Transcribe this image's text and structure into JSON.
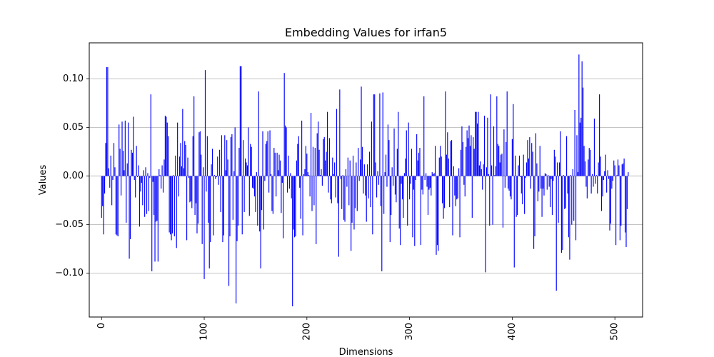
{
  "chart_data": {
    "type": "bar",
    "title": "Embedding Values for irfan5",
    "xlabel": "Dimensions",
    "ylabel": "Values",
    "xlim": [
      -12,
      527
    ],
    "ylim": [
      -0.145,
      0.137
    ],
    "grid": "y-major",
    "bar_color": "#0000ff",
    "x_ticks": [
      0,
      100,
      200,
      300,
      400,
      500
    ],
    "x_tick_labels": [
      "0",
      "100",
      "200",
      "300",
      "400",
      "500"
    ],
    "y_ticks": [
      -0.1,
      -0.05,
      0.0,
      0.05,
      0.1
    ],
    "y_tick_labels": [
      "−0.10",
      "−0.05",
      "0.00",
      "0.05",
      "0.10"
    ],
    "values": [
      -0.043,
      -0.031,
      -0.06,
      -0.018,
      0.034,
      0.112,
      0.112,
      0.008,
      -0.012,
      0.021,
      -0.03,
      -0.004,
      0.034,
      0.009,
      -0.06,
      -0.061,
      -0.062,
      0.053,
      0.028,
      -0.02,
      0.056,
      0.026,
      0.006,
      0.057,
      -0.048,
      0.013,
      0.055,
      -0.085,
      -0.065,
      0.027,
      0.024,
      0.061,
      -0.004,
      -0.022,
      0.031,
      -0.001,
      0.011,
      -0.052,
      -0.016,
      -0.007,
      -0.03,
      0.006,
      -0.042,
      0.009,
      -0.039,
      0.003,
      -0.036,
      -0.002,
      0.084,
      -0.098,
      -0.006,
      -0.04,
      -0.088,
      -0.047,
      -0.046,
      -0.088,
      0.007,
      0.001,
      -0.013,
      0.011,
      -0.017,
      0.017,
      0.062,
      0.061,
      0.055,
      0.041,
      -0.058,
      -0.06,
      -0.066,
      -0.059,
      0.001,
      -0.062,
      0.021,
      -0.074,
      0.055,
      -0.021,
      0.02,
      0.034,
      0.01,
      0.069,
      0.008,
      0.036,
      0.032,
      -0.066,
      0.019,
      -0.002,
      -0.027,
      -0.026,
      -0.033,
      0.041,
      0.082,
      -0.04,
      -0.028,
      -0.059,
      -0.049,
      0.045,
      0.046,
      0.022,
      -0.07,
      0.009,
      -0.106,
      0.109,
      -0.016,
      0.041,
      -0.048,
      -0.095,
      -0.068,
      0.012,
      0.028,
      -0.061,
      0.001,
      -0.003,
      -0.001,
      0.02,
      -0.009,
      0.027,
      -0.037,
      0.042,
      -0.068,
      -0.061,
      0.042,
      0.006,
      0.037,
      0.017,
      -0.113,
      -0.062,
      0.04,
      0.043,
      -0.045,
      0.005,
      0.05,
      -0.131,
      -0.067,
      -0.051,
      0.029,
      0.113,
      0.113,
      -0.06,
      0.037,
      -0.037,
      0.018,
      0.014,
      0.011,
      0.05,
      -0.041,
      0.033,
      0.03,
      -0.012,
      -0.013,
      -0.021,
      -0.037,
      0.004,
      -0.051,
      0.087,
      -0.057,
      -0.095,
      -0.035,
      0.046,
      -0.055,
      -0.005,
      0.033,
      0.036,
      0.046,
      -0.017,
      0.047,
      0.002,
      -0.036,
      -0.039,
      0.029,
      0.024,
      -0.021,
      0.024,
      0.006,
      0.022,
      0.016,
      -0.038,
      -0.007,
      -0.064,
      0.106,
      0.052,
      0.05,
      -0.017,
      0.021,
      -0.013,
      0.003,
      -0.023,
      -0.134,
      -0.055,
      -0.063,
      -0.062,
      0.016,
      0.033,
      0.041,
      -0.012,
      -0.044,
      0.057,
      -0.061,
      0.002,
      0.007,
      0.031,
      0.023,
      0.004,
      0.001,
      -0.021,
      0.065,
      -0.036,
      0.03,
      -0.03,
      0.029,
      -0.07,
      0.044,
      0.056,
      0.027,
      0.001,
      0.007,
      -0.01,
      0.038,
      0.04,
      0.016,
      0.025,
      0.066,
      -0.017,
      0.039,
      -0.024,
      -0.028,
      0.019,
      0.002,
      0.014,
      -0.022,
      0.069,
      -0.028,
      -0.083,
      0.089,
      -0.003,
      -0.034,
      0.001,
      -0.045,
      -0.047,
      0.007,
      -0.011,
      0.019,
      -0.03,
      0.016,
      -0.077,
      -0.048,
      0.021,
      -0.055,
      -0.033,
      0.014,
      -0.036,
      0.029,
      -0.005,
      0.017,
      0.092,
      0.03,
      -0.018,
      0.012,
      -0.02,
      -0.047,
      0.012,
      -0.023,
      0.025,
      -0.032,
      0.056,
      -0.06,
      0.084,
      0.084,
      0.014,
      -0.022,
      0.005,
      -0.009,
      0.085,
      -0.031,
      -0.098,
      0.086,
      -0.039,
      0.004,
      0.022,
      -0.011,
      0.053,
      0.037,
      -0.068,
      -0.04,
      0.009,
      -0.01,
      0.049,
      -0.019,
      -0.027,
      0.028,
      0.066,
      -0.054,
      -0.071,
      -0.008,
      -0.024,
      -0.043,
      0.003,
      0.018,
      0.047,
      -0.051,
      0.055,
      -0.024,
      -0.008,
      0.028,
      -0.063,
      -0.014,
      -0.072,
      -0.004,
      0.043,
      0.016,
      0.024,
      0.029,
      -0.071,
      -0.014,
      -0.019,
      0.082,
      -0.004,
      0.003,
      -0.011,
      -0.04,
      -0.014,
      -0.012,
      -0.02,
      0.004,
      0.002,
      0.003,
      0.031,
      -0.081,
      -0.071,
      -0.077,
      0.019,
      0.031,
      0.02,
      -0.028,
      -0.044,
      -0.033,
      0.087,
      0.022,
      0.045,
      0.018,
      -0.032,
      0.036,
      0.037,
      -0.061,
      0.01,
      -0.02,
      -0.031,
      -0.024,
      -0.023,
      0.008,
      -0.063,
      0.027,
      0.051,
      0.035,
      -0.009,
      -0.021,
      0.03,
      0.047,
      0.039,
      0.052,
      0.031,
      0.042,
      -0.043,
      0.04,
      0.028,
      0.066,
      0.066,
      0.054,
      0.066,
      0.011,
      0.015,
      0.007,
      -0.014,
      0.012,
      0.062,
      -0.099,
      0.009,
      0.06,
      0.002,
      -0.051,
      0.084,
      0.011,
      -0.05,
      0.051,
      0.001,
      0.01,
      0.082,
      0.033,
      0.031,
      0.014,
      0.022,
      0.023,
      -0.053,
      0.048,
      -0.012,
      0.035,
      0.087,
      -0.013,
      -0.015,
      -0.021,
      -0.024,
      0.038,
      0.074,
      -0.094,
      0.021,
      -0.042,
      -0.04,
      0.011,
      0.021,
      -0.001,
      -0.018,
      -0.029,
      0.022,
      -0.039,
      -0.002,
      0.014,
      0.037,
      0.018,
      0.04,
      -0.013,
      0.034,
      0.025,
      -0.075,
      -0.062,
      0.044,
      0.013,
      -0.026,
      -0.016,
      0.031,
      -0.013,
      -0.042,
      -0.013,
      -0.02,
      0.003,
      0.002,
      -0.014,
      0.001,
      -0.011,
      -0.032,
      -0.003,
      -0.04,
      -0.005,
      0.027,
      0.02,
      -0.118,
      0.014,
      -0.048,
      0.014,
      0.046,
      -0.079,
      -0.076,
      0.001,
      -0.034,
      -0.033,
      0.041,
      -0.018,
      -0.063,
      -0.086,
      0.001,
      -0.05,
      0.007,
      -0.046,
      0.068,
      -0.066,
      0.042,
      0.004,
      0.125,
      0.055,
      0.06,
      0.118,
      0.091,
      0.031,
      0.015,
      -0.011,
      -0.023,
      0.017,
      0.029,
      0.027,
      -0.018,
      0.002,
      -0.011,
      0.059,
      -0.008,
      0.001,
      -0.018,
      0.014,
      0.084,
      0.02,
      -0.036,
      -0.021,
      -0.004,
      0.005,
      0.022,
      -0.017,
      0.006,
      -0.003,
      -0.056,
      -0.049,
      -0.013,
      -0.005,
      0.016,
      0.011,
      -0.071,
      0.001,
      0.017,
      0.011,
      -0.066,
      -0.051,
      0.012,
      0.013,
      0.018,
      -0.058,
      -0.073,
      -0.034,
      0.004
    ]
  }
}
